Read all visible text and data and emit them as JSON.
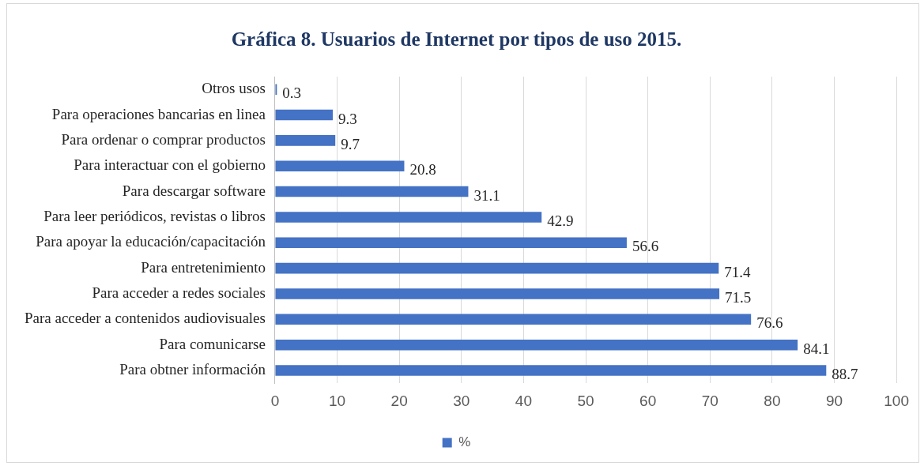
{
  "chart_data": {
    "type": "bar",
    "orientation": "horizontal",
    "title": "Gráfica 8. Usuarios de Internet por tipos de uso 2015.",
    "categories": [
      "Otros usos",
      "Para operaciones bancarias en linea",
      "Para ordenar o comprar productos",
      "Para interactuar con el gobierno",
      "Para descargar software",
      "Para leer periódicos, revistas o libros",
      "Para apoyar la educación/capacitación",
      "Para entretenimiento",
      "Para acceder a redes sociales",
      "Para acceder a contenidos audiovisuales",
      "Para comunicarse",
      "Para obtner información"
    ],
    "series": [
      {
        "name": "%",
        "color": "#4472c4",
        "values": [
          0.3,
          9.3,
          9.7,
          20.8,
          31.1,
          42.9,
          56.6,
          71.4,
          71.5,
          76.6,
          84.1,
          88.7
        ]
      }
    ],
    "xlim": [
      0,
      100
    ],
    "xticks": [
      0,
      10,
      20,
      30,
      40,
      50,
      60,
      70,
      80,
      90,
      100
    ],
    "grid": "x",
    "legend": "bottom",
    "data_labels": true
  }
}
